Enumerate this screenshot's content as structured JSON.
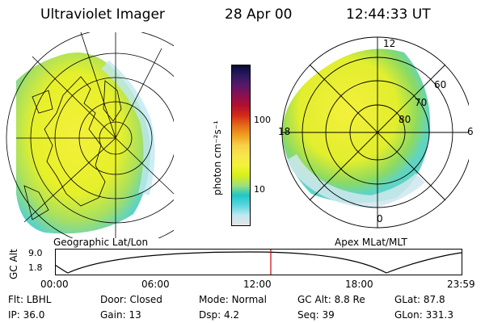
{
  "header": {
    "title": "Ultraviolet Imager",
    "date": "28 Apr 00",
    "time": "12:44:33 UT"
  },
  "colorbar": {
    "unit": "photon cm⁻²s⁻¹",
    "ticks": [
      {
        "label": "100",
        "value": 100
      },
      {
        "label": "10",
        "value": 10
      }
    ],
    "colors": [
      "#e6e6e6",
      "#bfe8f0",
      "#5ad5e0",
      "#1fc6c6",
      "#9ee07a",
      "#d8f018",
      "#f2f23a",
      "#f8e64c",
      "#f6d046",
      "#f0a020",
      "#e56a18",
      "#d42a18",
      "#b01030",
      "#8a1050",
      "#5a1868",
      "#2a1a60",
      "#0a0a38"
    ]
  },
  "geo_map": {
    "label": "Geographic Lat/Lon"
  },
  "polar_map": {
    "label": "Apex MLat/MLT",
    "mlt_labels": [
      "12",
      "18",
      "6",
      "0"
    ],
    "lat_labels": [
      "60",
      "70",
      "80"
    ]
  },
  "timeline": {
    "ylabel": "GC Alt",
    "y_ticks": [
      "9.0",
      "1.8"
    ],
    "x_ticks": [
      "00:00",
      "06:00",
      "12:00",
      "18:00",
      "23:59"
    ],
    "current_time_hours": 12.74,
    "marker_color": "#cc0000"
  },
  "status": {
    "row1": [
      {
        "key": "Flt:",
        "value": "LBHL"
      },
      {
        "key": "Door:",
        "value": "Closed"
      },
      {
        "key": "Mode:",
        "value": "Normal"
      },
      {
        "key": "GC Alt:",
        "value": "8.8 Re"
      },
      {
        "key": "GLat:",
        "value": "87.8"
      }
    ],
    "row2": [
      {
        "key": "IP:",
        "value": "36.0"
      },
      {
        "key": "Gain:",
        "value": "13"
      },
      {
        "key": "Dsp:",
        "value": "4.2"
      },
      {
        "key": "Seq:",
        "value": "39"
      },
      {
        "key": "GLon:",
        "value": "331.3"
      }
    ]
  }
}
